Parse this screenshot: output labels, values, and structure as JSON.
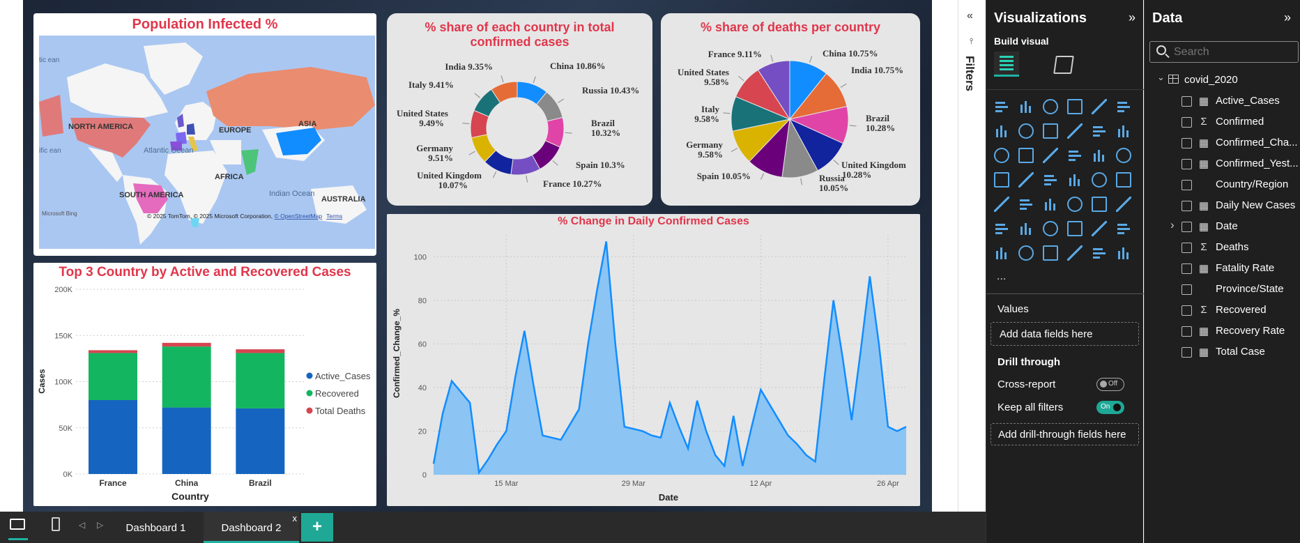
{
  "map": {
    "title": "Population Infected %",
    "labels": [
      "NORTH AMERICA",
      "EUROPE",
      "ASIA",
      "AFRICA",
      "SOUTH AMERICA",
      "AUSTRALIA",
      "Atlantic Ocean",
      "Pacific Ocean",
      "Indian Ocean",
      "tic ean",
      "ific ean"
    ],
    "attribution": "© 2025 TomTom, © 2025 Microsoft Corporation, ",
    "osm": "© OpenStreetMap",
    "terms": "Terms",
    "bing": "Microsoft Bing"
  },
  "donut": {
    "title_line1": "% share of each country in total",
    "title_line2": "confirmed cases",
    "slices": [
      {
        "label": "China 10.86%",
        "color": "#118dff"
      },
      {
        "label": "Russia 10.43%",
        "color": "#8a8a8a"
      },
      {
        "label": "Brazil 10.32%",
        "color": "#e044a7"
      },
      {
        "label": "Spain 10.3%",
        "color": "#6b007b"
      },
      {
        "label": "France 10.27%",
        "color": "#744ec2"
      },
      {
        "label": "United Kingdom 10.07%",
        "color": "#12239e"
      },
      {
        "label": "Germany 9.51%",
        "color": "#d9b300"
      },
      {
        "label": "United States 9.49%",
        "color": "#d64550"
      },
      {
        "label": "Italy 9.41%",
        "color": "#197278"
      },
      {
        "label": "India 9.35%",
        "color": "#e66c37"
      }
    ],
    "values": [
      10.86,
      10.43,
      10.32,
      10.3,
      10.27,
      10.07,
      9.51,
      9.49,
      9.41,
      9.35
    ]
  },
  "pie": {
    "title": "% share of deaths per country",
    "slices": [
      {
        "label": "China 10.75%",
        "color": "#118dff"
      },
      {
        "label": "India 10.75%",
        "color": "#e66c37"
      },
      {
        "label": "Brazil 10.28%",
        "color": "#e044a7"
      },
      {
        "label": "United Kingdom 10.28%",
        "color": "#12239e"
      },
      {
        "label": "Russia 10.05%",
        "color": "#8a8a8a"
      },
      {
        "label": "Spain 10.05%",
        "color": "#6b007b"
      },
      {
        "label": "Germany 9.58%",
        "color": "#d9b300"
      },
      {
        "label": "Italy 9.58%",
        "color": "#197278"
      },
      {
        "label": "United States 9.58%",
        "color": "#d64550"
      },
      {
        "label": "France 9.11%",
        "color": "#744ec2"
      }
    ],
    "values": [
      10.75,
      10.75,
      10.28,
      10.28,
      10.05,
      10.05,
      9.58,
      9.58,
      9.58,
      9.11
    ]
  },
  "chart_data": [
    {
      "type": "bar",
      "title": "Top 3 Country by Active and Recovered Cases",
      "xlabel": "Country",
      "ylabel": "Cases",
      "categories": [
        "France",
        "China",
        "Brazil"
      ],
      "yticks": [
        "0K",
        "50K",
        "100K",
        "150K",
        "200K"
      ],
      "ylim": [
        0,
        200000
      ],
      "series": [
        {
          "name": "Active_Cases",
          "color": "#1565c0",
          "values": [
            80000,
            72000,
            71000
          ]
        },
        {
          "name": "Recovered",
          "color": "#13b560",
          "values": [
            51000,
            66000,
            60000
          ]
        },
        {
          "name": "Total Deaths",
          "color": "#d64550",
          "values": [
            3000,
            4000,
            4000
          ]
        }
      ],
      "legend": "right"
    },
    {
      "type": "area",
      "title": "% Change in Daily Confirmed Cases",
      "xlabel": "Date",
      "ylabel": "Confirmed_Change_%",
      "xticks": [
        "15 Mar",
        "29 Mar",
        "12 Apr",
        "26 Apr"
      ],
      "yticks": [
        "0",
        "20",
        "40",
        "60",
        "80",
        "100"
      ],
      "ylim": [
        0,
        110
      ],
      "x": [
        "07 Mar",
        "08 Mar",
        "09 Mar",
        "10 Mar",
        "11 Mar",
        "12 Mar",
        "13 Mar",
        "14 Mar",
        "15 Mar",
        "16 Mar",
        "17 Mar",
        "18 Mar",
        "19 Mar",
        "20 Mar",
        "21 Mar",
        "22 Mar",
        "23 Mar",
        "24 Mar",
        "25 Mar",
        "26 Mar",
        "27 Mar",
        "28 Mar",
        "29 Mar",
        "30 Mar",
        "31 Mar",
        "01 Apr",
        "02 Apr",
        "03 Apr",
        "04 Apr",
        "05 Apr",
        "06 Apr",
        "07 Apr",
        "08 Apr",
        "09 Apr",
        "10 Apr",
        "11 Apr",
        "12 Apr",
        "13 Apr",
        "14 Apr",
        "15 Apr",
        "16 Apr",
        "17 Apr",
        "18 Apr",
        "19 Apr",
        "20 Apr",
        "21 Apr",
        "22 Apr",
        "23 Apr",
        "24 Apr",
        "25 Apr",
        "26 Apr",
        "27 Apr",
        "28 Apr"
      ],
      "values": [
        5,
        28,
        43,
        38,
        33,
        1,
        7,
        14,
        20,
        45,
        66,
        41,
        18,
        17,
        16,
        23,
        30,
        60,
        85,
        107,
        60,
        22,
        21,
        20,
        18,
        17,
        33,
        22,
        12,
        34,
        20,
        9,
        4,
        27,
        4,
        22,
        39,
        32,
        25,
        18,
        14,
        9,
        6,
        44,
        80,
        54,
        25,
        57,
        91,
        60,
        22,
        20,
        22
      ]
    }
  ],
  "viz": {
    "title": "Visualizations",
    "build": "Build visual",
    "values_label": "Values",
    "add_data": "Add data fields here",
    "drill": "Drill through",
    "cross": "Cross-report",
    "cross_state": "Off",
    "keep": "Keep all filters",
    "keep_state": "On",
    "add_drill": "Add drill-through fields here",
    "more": "..."
  },
  "filters": {
    "label": "Filters"
  },
  "data": {
    "title": "Data",
    "search_placeholder": "Search",
    "table": "covid_2020",
    "fields": [
      {
        "name": "Active_Cases",
        "icon": "calc",
        "check": true
      },
      {
        "name": "Confirmed",
        "icon": "sigma",
        "check": true
      },
      {
        "name": "Confirmed_Cha...",
        "icon": "calc",
        "check": true
      },
      {
        "name": "Confirmed_Yest...",
        "icon": "calc",
        "check": true
      },
      {
        "name": "Country/Region",
        "icon": "none",
        "check": true
      },
      {
        "name": "Daily New Cases",
        "icon": "calc",
        "check": true
      },
      {
        "name": "Date",
        "icon": "table",
        "check": true,
        "expand": true
      },
      {
        "name": "Deaths",
        "icon": "sigma",
        "check": true
      },
      {
        "name": "Fatality Rate",
        "icon": "calc",
        "check": true
      },
      {
        "name": "Province/State",
        "icon": "none",
        "check": true
      },
      {
        "name": "Recovered",
        "icon": "sigma",
        "check": true
      },
      {
        "name": "Recovery Rate",
        "icon": "calc",
        "check": true
      },
      {
        "name": "Total Case",
        "icon": "calc",
        "check": true
      }
    ]
  },
  "tabs": {
    "t1": "Dashboard 1",
    "t2": "Dashboard 2",
    "close": "x",
    "add": "+"
  }
}
